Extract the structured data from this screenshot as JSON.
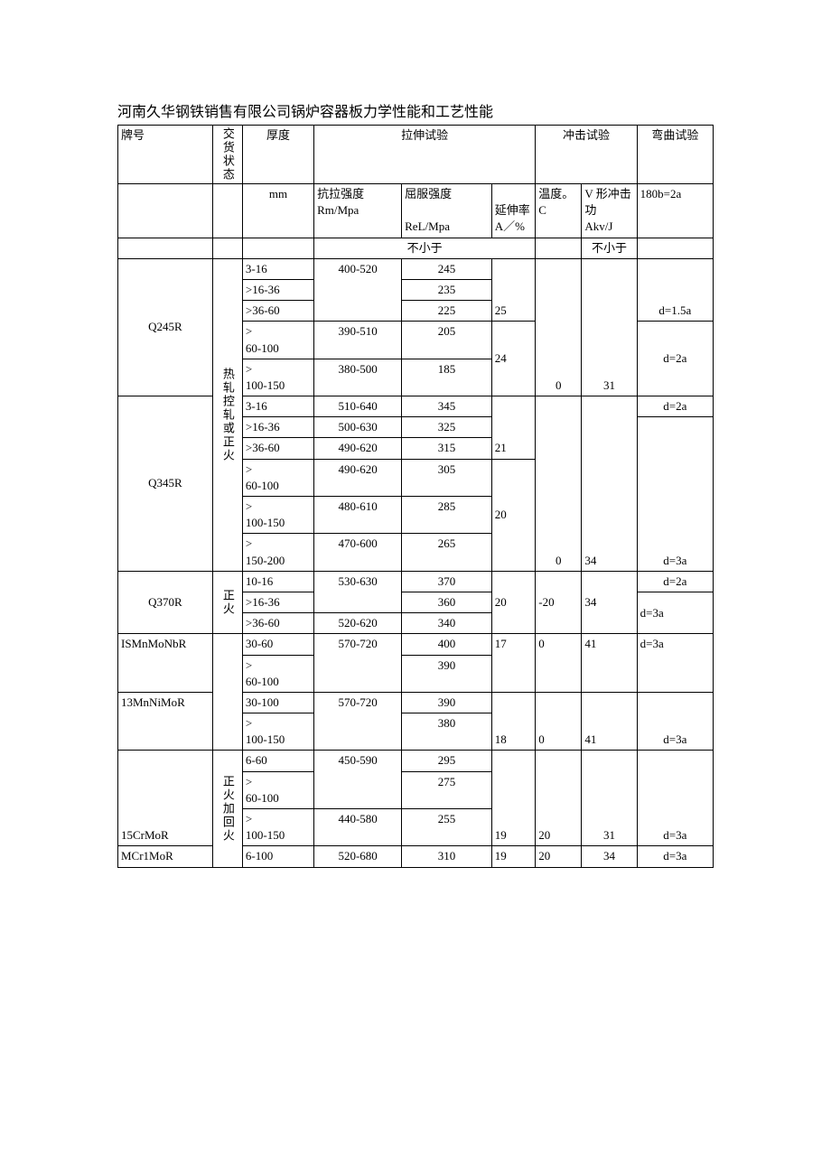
{
  "title": "河南久华钢铁销售有限公司锅炉容器板力学性能和工艺性能",
  "headers": {
    "grade": "牌号",
    "deliveryState": "交货状态",
    "thickness": "厚度",
    "tensileTest": "拉伸试验",
    "impactTest": "冲击试验",
    "bendTest": "弯曲试验",
    "mm": "mm",
    "rm": "抗拉强度\nRm/Mpa",
    "rel": "屈服强度\n\nReL/Mpa",
    "elong": "延伸率\nA／%",
    "temp": "温度。C",
    "akv": "V 形冲击功\nAkv/J",
    "bendHead": "180b=2a",
    "noLessThan": "不小于"
  },
  "states": {
    "hotOrNorm": "热轧控轧或正火",
    "norm": "正火",
    "normTemper": "正火加回火"
  },
  "rows": {
    "q245r": {
      "grade": "Q245R",
      "t1": "3-16",
      "rm1": "400-520",
      "rel1": "245",
      "t2": ">16-36",
      "rel2": "235",
      "t3": ">36-60",
      "rel3": "225",
      "a3": "25",
      "bend3": "d=1.5a",
      "t4": ">\n60-100",
      "rm4": "390-510",
      "rel4": "205",
      "t5": ">\n100-150",
      "rm5": "380-500",
      "rel5": "185",
      "a5": "24",
      "temp": "0",
      "akv": "31",
      "bend5": "d=2a"
    },
    "q345r": {
      "grade": "Q345R",
      "t1": "3-16",
      "rm1": "510-640",
      "rel1": "345",
      "bend1": "d=2a",
      "t2": ">16-36",
      "rm2": "500-630",
      "rel2": "325",
      "t3": ">36-60",
      "rm3": "490-620",
      "rel3": "315",
      "a3": "21",
      "t4": ">\n60-100",
      "rm4": "490-620",
      "rel4": "305",
      "t5": ">\n100-150",
      "rm5": "480-610",
      "rel5": "285",
      "a5": "20",
      "t6": ">\n150-200",
      "rm6": "470-600",
      "rel6": "265",
      "temp": "0",
      "akv": "34",
      "bend6": "d=3a"
    },
    "q370r": {
      "grade": "Q370R",
      "t1": "10-16",
      "rm1": "530-630",
      "rel1": "370",
      "bend1": "d=2a",
      "t2": ">16-36",
      "rel2": "360",
      "t3": ">36-60",
      "rm3": "520-620",
      "rel3": "340",
      "a": "20",
      "temp": "-20",
      "akv": "34",
      "bend3": "d=3a"
    },
    "ismn": {
      "grade": "ISMnMoNbR",
      "t1": "30-60",
      "rm1": "570-720",
      "rel1": "400",
      "a": "17",
      "t2": ">\n60-100",
      "rel2": "390",
      "temp": "0",
      "akv": "41",
      "bend": "d=3a"
    },
    "m13": {
      "grade": "13MnNiMoR",
      "t1": "30-100",
      "rm1": "570-720",
      "rel1": "390",
      "t2": ">\n100-150",
      "rel2": "380",
      "a": "18",
      "temp": "0",
      "akv": "41",
      "bend": "d=3a"
    },
    "c15": {
      "grade": "15CrMoR",
      "t1": "6-60",
      "rm1": "450-590",
      "rel1": "295",
      "t2": ">\n60-100",
      "rel2": "275",
      "t3": ">\n100-150",
      "rm3": "440-580",
      "rel3": "255",
      "a": "19",
      "temp": "20",
      "akv": "31",
      "bend": "d=3a"
    },
    "mcr1": {
      "grade": "MCr1MoR",
      "t1": "6-100",
      "rm1": "520-680",
      "rel1": "310",
      "a": "19",
      "temp": "20",
      "akv": "34",
      "bend": "d=3a"
    }
  }
}
